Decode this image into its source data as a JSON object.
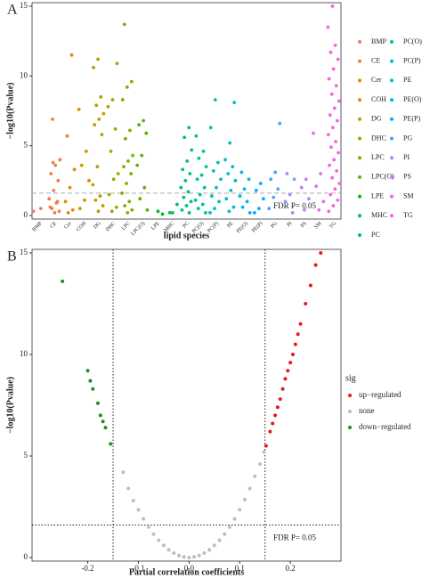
{
  "chart_data": [
    {
      "type": "strip",
      "panel_label": "A",
      "y_label": "−log10(Pvalue)",
      "x_label": "lipid species",
      "ylim": [
        0,
        15
      ],
      "yticks": [
        0,
        5,
        10,
        15
      ],
      "hline": 1.6,
      "annotation": "FDR P= 0.05",
      "series": [
        {
          "name": "BMP",
          "color": "#F8766D",
          "values": [
            0.3,
            0.5
          ]
        },
        {
          "name": "CE",
          "color": "#EE8044",
          "values": [
            6.9,
            4.0,
            3.6,
            3.0,
            2.5,
            1.8,
            1.2,
            0.9,
            0.5,
            0.3,
            0.2,
            0.6,
            1.0,
            3.8
          ]
        },
        {
          "name": "Cer",
          "color": "#E18A00",
          "values": [
            11.5,
            5.7,
            3.3,
            2.0,
            1.0,
            0.4,
            0.2
          ]
        },
        {
          "name": "COH",
          "color": "#D09400",
          "values": [
            7.6,
            4.6,
            3.6,
            2.5,
            1.1,
            0.5
          ]
        },
        {
          "name": "DG",
          "color": "#BB9D00",
          "values": [
            11.2,
            10.6,
            8.5,
            7.9,
            7.3,
            6.9,
            6.5,
            5.8,
            3.5,
            2.2,
            1.4,
            1.1,
            0.7,
            0.3
          ]
        },
        {
          "name": "DHC",
          "color": "#A3A500",
          "values": [
            10.9,
            8.3,
            7.8,
            6.2,
            4.6,
            3.0,
            2.6,
            1.5,
            0.6,
            0.3
          ]
        },
        {
          "name": "LPC",
          "color": "#85AD00",
          "values": [
            13.7,
            9.6,
            9.2,
            8.3,
            6.1,
            5.5,
            4.3,
            3.9,
            3.5,
            3.0,
            2.3,
            1.6,
            1.0,
            0.7,
            0.4,
            0.2
          ]
        },
        {
          "name": "LPC(O)",
          "color": "#5BB300",
          "values": [
            6.8,
            6.5,
            5.9,
            4.3,
            3.6,
            2.0,
            1.2,
            0.4
          ]
        },
        {
          "name": "LPE",
          "color": "#00B81F",
          "values": [
            0.1,
            0.3
          ]
        },
        {
          "name": "MHC",
          "color": "#00BC59",
          "values": [
            0.2,
            0.8,
            0.2
          ]
        },
        {
          "name": "PC",
          "color": "#00BF7D",
          "values": [
            6.3,
            5.6,
            4.7,
            3.9,
            3.3,
            3.0,
            2.5,
            2.0,
            1.7,
            1.3,
            1.0,
            0.7,
            0.4,
            0.2
          ]
        },
        {
          "name": "PC(O)",
          "color": "#00C19C",
          "values": [
            5.7,
            4.6,
            4.1,
            3.5,
            2.9,
            2.6,
            2.0,
            1.5,
            1.1,
            0.8,
            0.5,
            0.2
          ]
        },
        {
          "name": "PC(P)",
          "color": "#00C0B8",
          "values": [
            8.3,
            6.3,
            3.8,
            3.2,
            2.6,
            2.0,
            1.4,
            1.0,
            0.5,
            0.2
          ]
        },
        {
          "name": "PE",
          "color": "#00BCD1",
          "values": [
            8.1,
            5.2,
            4.0,
            3.5,
            3.0,
            2.5,
            1.8,
            1.2,
            0.6,
            0.3
          ]
        },
        {
          "name": "PE(O)",
          "color": "#00B5E7",
          "values": [
            3.1,
            2.6,
            1.9,
            1.4,
            1.0,
            0.6,
            0.2
          ]
        },
        {
          "name": "PE(P)",
          "color": "#00ABFD",
          "values": [
            2.3,
            1.8,
            1.2,
            0.5,
            0.2
          ]
        },
        {
          "name": "PG",
          "color": "#529EFF",
          "values": [
            6.6,
            3.1,
            2.6,
            1.9,
            1.3,
            0.5
          ]
        },
        {
          "name": "PI",
          "color": "#9590FF",
          "values": [
            3.0,
            2.6,
            1.5,
            1.0,
            0.2
          ]
        },
        {
          "name": "PS",
          "color": "#C77CFF",
          "values": [
            2.6,
            2.0,
            1.2,
            0.4
          ]
        },
        {
          "name": "SM",
          "color": "#E76BF3",
          "values": [
            5.9,
            3.0,
            2.1,
            1.0,
            0.4
          ]
        },
        {
          "name": "TG",
          "color": "#FA62DB",
          "values": [
            15,
            13.5,
            12.2,
            11.7,
            11.2,
            10.5,
            9.8,
            9.3,
            8.7,
            8.2,
            7.7,
            7.2,
            6.8,
            6.3,
            5.8,
            5.3,
            4.9,
            4.5,
            4.0,
            3.6,
            3.2,
            2.7,
            2.3,
            1.9,
            1.5,
            1.1,
            0.7,
            0.3
          ]
        }
      ]
    },
    {
      "type": "scatter",
      "panel_label": "B",
      "y_label": "−log10(Pvalue)",
      "x_label": "Partial correlation coefficients",
      "xlim": [
        -0.31,
        0.3
      ],
      "xticks": [
        -0.2,
        -0.1,
        {
          "value": 0,
          "label": "0.0"
        },
        0.1,
        0.2
      ],
      "ylim": [
        0,
        15
      ],
      "yticks": [
        0,
        5,
        10,
        15
      ],
      "hline": 1.6,
      "vlines": [
        -0.15,
        0.15
      ],
      "annotation": "FDR P= 0.05",
      "legend_title": "sig",
      "series": [
        {
          "name": "up−regulated",
          "color": "#E41A1C",
          "x": [
            0.152,
            0.16,
            0.165,
            0.17,
            0.175,
            0.18,
            0.185,
            0.19,
            0.195,
            0.2,
            0.205,
            0.21,
            0.215,
            0.22,
            0.23,
            0.24,
            0.25,
            0.26
          ],
          "values": [
            5.5,
            6.2,
            6.6,
            7.0,
            7.4,
            7.8,
            8.3,
            8.8,
            9.2,
            9.6,
            10.0,
            10.5,
            11.0,
            11.5,
            12.5,
            13.4,
            14.4,
            15.0
          ]
        },
        {
          "name": "none",
          "color": "#BEBEBE",
          "x": [
            -0.13,
            -0.12,
            -0.11,
            -0.1,
            -0.09,
            -0.08,
            -0.07,
            -0.06,
            -0.05,
            -0.04,
            -0.03,
            -0.02,
            -0.01,
            0,
            0.01,
            0.02,
            0.03,
            0.04,
            0.05,
            0.06,
            0.07,
            0.08,
            0.09,
            0.1,
            0.11,
            0.12,
            0.13,
            0.14,
            0.148
          ],
          "values": [
            4.2,
            3.4,
            2.8,
            2.35,
            1.9,
            1.5,
            1.15,
            0.85,
            0.6,
            0.38,
            0.22,
            0.1,
            0.03,
            0,
            0.03,
            0.1,
            0.22,
            0.38,
            0.6,
            0.85,
            1.15,
            1.5,
            1.9,
            2.35,
            2.85,
            3.4,
            4.0,
            4.6,
            5.2
          ]
        },
        {
          "name": "down−regulated",
          "color": "#238B22",
          "x": [
            -0.25,
            -0.2,
            -0.195,
            -0.19,
            -0.18,
            -0.175,
            -0.17,
            -0.165,
            -0.155
          ],
          "values": [
            13.6,
            9.2,
            8.7,
            8.3,
            7.6,
            7.0,
            6.7,
            6.4,
            5.6
          ]
        }
      ]
    }
  ]
}
